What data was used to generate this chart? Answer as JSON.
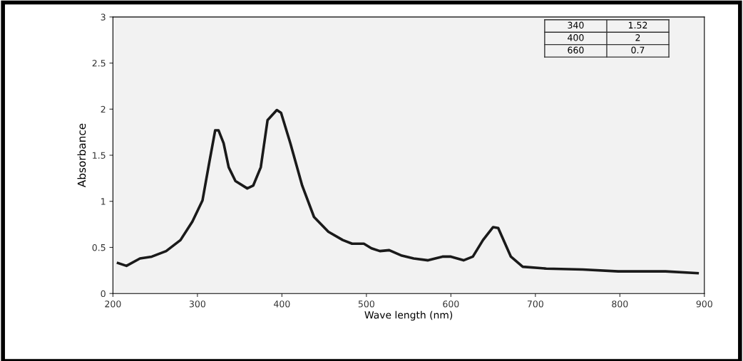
{
  "chart_data": {
    "type": "line",
    "xlabel": "Wave length (nm)",
    "ylabel": "Absorbance",
    "series": [
      {
        "color": "#1a1a1a",
        "x": [
          206,
          216,
          232,
          246,
          263,
          280,
          294,
          306,
          314,
          321,
          325,
          331,
          337,
          345,
          359,
          366,
          375,
          383,
          394,
          399,
          410,
          424,
          438,
          455,
          472,
          483,
          497,
          506,
          516,
          527,
          542,
          556,
          573,
          590,
          600,
          615,
          626,
          638,
          650,
          656,
          671,
          685,
          713,
          756,
          798,
          854,
          892
        ],
        "values": [
          0.33,
          0.3,
          0.38,
          0.4,
          0.46,
          0.58,
          0.78,
          1.01,
          1.42,
          1.77,
          1.77,
          1.63,
          1.37,
          1.22,
          1.14,
          1.17,
          1.37,
          1.88,
          1.99,
          1.96,
          1.63,
          1.17,
          0.83,
          0.67,
          0.58,
          0.54,
          0.54,
          0.49,
          0.46,
          0.47,
          0.41,
          0.38,
          0.36,
          0.4,
          0.4,
          0.36,
          0.4,
          0.58,
          0.72,
          0.71,
          0.4,
          0.29,
          0.27,
          0.26,
          0.24,
          0.24,
          0.22
        ]
      }
    ],
    "xlim": [
      200,
      900
    ],
    "xticks": [
      200,
      300,
      400,
      500,
      600,
      700,
      800,
      900
    ],
    "ylim": [
      0,
      3
    ],
    "yticks": [
      0,
      0.5,
      1,
      1.5,
      2,
      2.5,
      3
    ],
    "annotations": [
      "340",
      "1.52",
      "400",
      "2",
      "660",
      "0.7"
    ],
    "grid": false,
    "marker": "none",
    "line_style": "solid"
  }
}
